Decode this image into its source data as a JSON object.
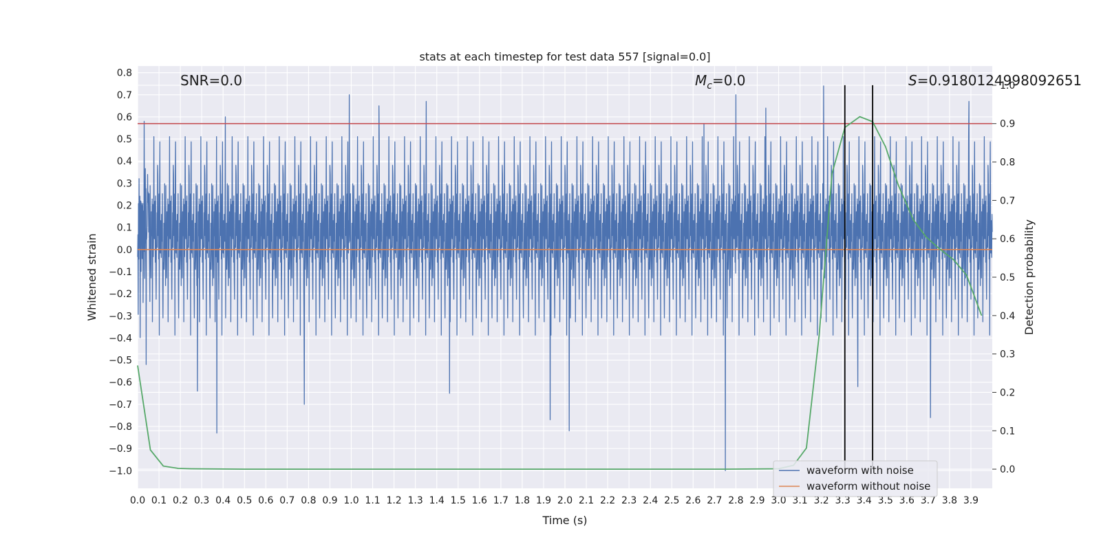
{
  "chart_data": {
    "type": "line",
    "title": "stats at each timestep for test data 557 [signal=0.0]",
    "xlabel": "Time (s)",
    "ylabel": "Whitened strain",
    "ylabel_right": "Detection probability",
    "xlim": [
      0.0,
      4.0
    ],
    "ylim": [
      -1.08,
      0.83
    ],
    "ylim_right": [
      -0.05,
      1.05
    ],
    "x_ticks": [
      "0.0",
      "0.1",
      "0.2",
      "0.3",
      "0.4",
      "0.5",
      "0.6",
      "0.7",
      "0.8",
      "0.9",
      "1.0",
      "1.1",
      "1.2",
      "1.3",
      "1.4",
      "1.5",
      "1.6",
      "1.7",
      "1.8",
      "1.9",
      "2.0",
      "2.1",
      "2.2",
      "2.3",
      "2.4",
      "2.5",
      "2.6",
      "2.7",
      "2.8",
      "2.9",
      "3.0",
      "3.1",
      "3.2",
      "3.3",
      "3.4",
      "3.5",
      "3.6",
      "3.7",
      "3.8",
      "3.9"
    ],
    "y_ticks": [
      "0.8",
      "0.7",
      "0.6",
      "0.5",
      "0.4",
      "0.3",
      "0.2",
      "0.1",
      "0.0",
      "−0.1",
      "−0.2",
      "−0.3",
      "−0.4",
      "−0.5",
      "−0.6",
      "−0.7",
      "−0.8",
      "−0.9",
      "−1.0"
    ],
    "y_ticks_right": [
      "1.0",
      "0.9",
      "0.8",
      "0.7",
      "0.6",
      "0.5",
      "0.4",
      "0.3",
      "0.2",
      "0.1",
      "0.0"
    ],
    "grid": true,
    "legend_position": "lower-right",
    "annotations": {
      "snr": "SNR=0.0",
      "mc_symbol": "M",
      "mc_sub": "c",
      "mc_value": "=0.0",
      "s_symbol": "S",
      "s_value": "=0.9180124998092651"
    },
    "series": [
      {
        "name": "waveform with noise",
        "color": "#4c72b0",
        "style": "dense noise between about -0.55 and 0.5 with spikes",
        "spikes": [
          {
            "x": 0.03,
            "y": 0.58
          },
          {
            "x": 0.04,
            "y": -0.52
          },
          {
            "x": 0.28,
            "y": -0.64
          },
          {
            "x": 0.37,
            "y": -0.83
          },
          {
            "x": 0.41,
            "y": 0.6
          },
          {
            "x": 0.78,
            "y": -0.7
          },
          {
            "x": 0.99,
            "y": 0.7
          },
          {
            "x": 1.13,
            "y": 0.65
          },
          {
            "x": 1.35,
            "y": 0.67
          },
          {
            "x": 1.46,
            "y": -0.65
          },
          {
            "x": 1.93,
            "y": -0.77
          },
          {
            "x": 2.02,
            "y": -0.82
          },
          {
            "x": 2.65,
            "y": 0.57
          },
          {
            "x": 2.75,
            "y": -1.0
          },
          {
            "x": 2.8,
            "y": 0.7
          },
          {
            "x": 2.94,
            "y": 0.64
          },
          {
            "x": 3.21,
            "y": 0.74
          },
          {
            "x": 3.37,
            "y": -0.62
          },
          {
            "x": 3.71,
            "y": -0.76
          },
          {
            "x": 3.89,
            "y": 0.67
          }
        ]
      },
      {
        "name": "waveform without noise",
        "color": "#dd8452",
        "x": [
          0.0,
          4.0
        ],
        "y": [
          0.0,
          0.0
        ]
      },
      {
        "color": "#55a868",
        "axis": "right",
        "x": [
          0.0,
          0.06,
          0.12,
          0.19,
          0.25,
          0.5,
          1.0,
          2.0,
          2.75,
          3.0,
          3.07,
          3.13,
          3.19,
          3.25,
          3.31,
          3.38,
          3.44,
          3.5,
          3.56,
          3.63,
          3.69,
          3.75,
          3.82,
          3.88,
          3.95
        ],
        "y": [
          0.27,
          0.05,
          0.008,
          0.002,
          0.001,
          0.0,
          0.0,
          0.0,
          0.0,
          0.001,
          0.01,
          0.055,
          0.35,
          0.77,
          0.89,
          0.918,
          0.905,
          0.84,
          0.74,
          0.65,
          0.605,
          0.575,
          0.545,
          0.505,
          0.4
        ]
      }
    ],
    "threshold_line": {
      "color": "#c44e52",
      "y_right": 0.9
    },
    "vertical_lines": {
      "color": "#000000",
      "x": [
        3.31,
        3.44
      ],
      "y_right_range": [
        0.0,
        1.0
      ]
    }
  }
}
